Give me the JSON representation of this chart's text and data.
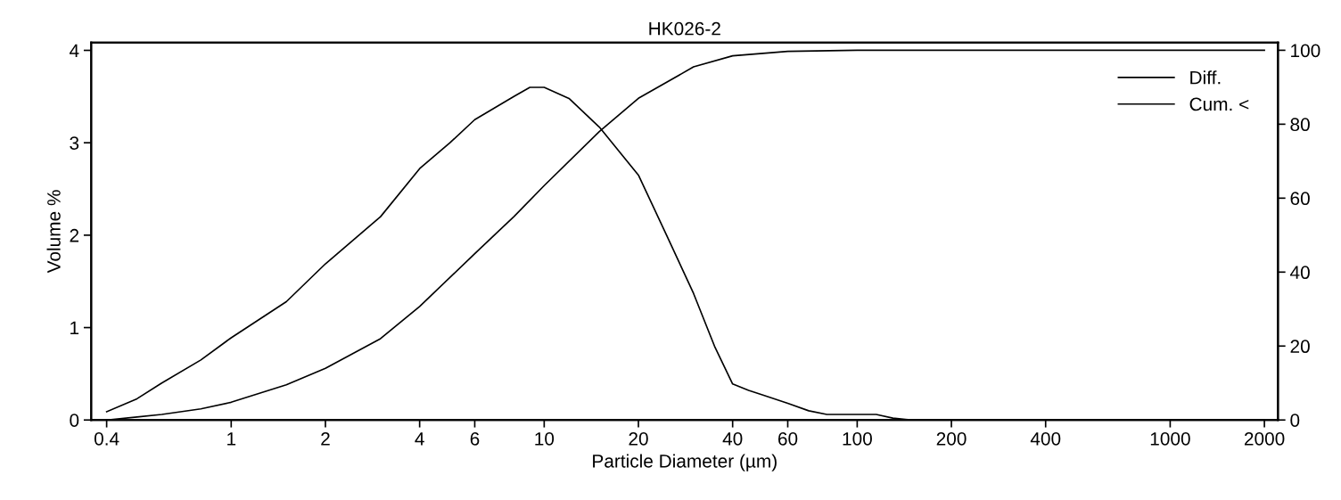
{
  "chart_data": {
    "type": "line",
    "title": "HK026-2",
    "xlabel": "Particle Diameter (µm)",
    "ylabel": "Volume %",
    "log": "x",
    "grid": false,
    "legend": "top right",
    "marker": "none",
    "line_style": "solid",
    "xlim": [
      0.357,
      2210
    ],
    "xticks": [
      0.4,
      1,
      2,
      4,
      6,
      10,
      20,
      40,
      60,
      100,
      200,
      400,
      1000,
      2000
    ],
    "ylim": [
      0,
      4.085
    ],
    "yticks": [
      0,
      1,
      2,
      3,
      4
    ],
    "y2lim": [
      0,
      102.1
    ],
    "y2ticks": [
      0,
      20,
      40,
      60,
      80,
      100
    ],
    "series": [
      {
        "name": "Diff.",
        "color": "#000000",
        "x": [
          0.4,
          0.5,
          0.6,
          0.8,
          1,
          1.5,
          2,
          3,
          4,
          5,
          6,
          8,
          9,
          10,
          12,
          15,
          20,
          25,
          30,
          35,
          40,
          45,
          50,
          60,
          70,
          80,
          100,
          115,
          130,
          150,
          2000
        ],
        "values": [
          0.09,
          0.23,
          0.4,
          0.65,
          0.89,
          1.28,
          1.69,
          2.2,
          2.72,
          3.0,
          3.25,
          3.5,
          3.6,
          3.6,
          3.48,
          3.17,
          2.65,
          1.95,
          1.37,
          0.8,
          0.39,
          0.32,
          0.27,
          0.18,
          0.1,
          0.06,
          0.06,
          0.06,
          0.02,
          0,
          0
        ]
      },
      {
        "name": "Cum. <",
        "color": "#000000",
        "axis": "y2",
        "x": [
          0.4,
          0.5,
          0.6,
          0.8,
          1,
          1.5,
          2,
          3,
          4,
          6,
          8,
          10,
          15,
          20,
          30,
          40,
          60,
          100,
          2000
        ],
        "values": [
          0,
          0.8,
          1.5,
          3,
          4.8,
          9.5,
          14,
          22,
          30.7,
          45,
          55,
          63.4,
          78,
          87,
          95.5,
          98.5,
          99.7,
          100,
          100
        ]
      }
    ]
  }
}
